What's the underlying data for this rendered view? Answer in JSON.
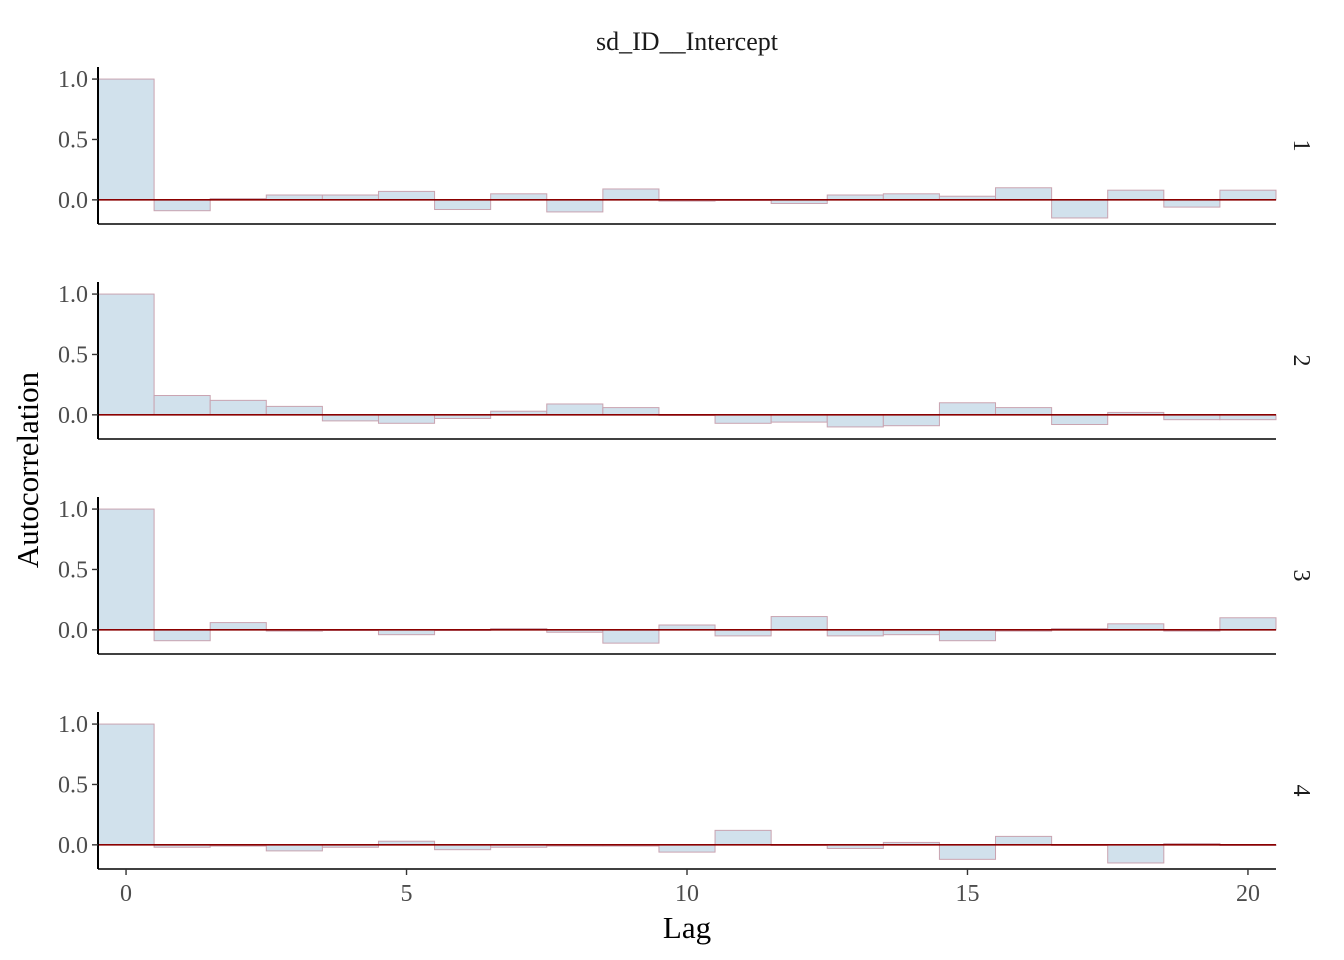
{
  "chart_data": {
    "type": "bar",
    "title": "sd_ID__Intercept",
    "xlabel": "Lag",
    "ylabel": "Autocorrelation",
    "x": [
      0,
      1,
      2,
      3,
      4,
      5,
      6,
      7,
      8,
      9,
      10,
      11,
      12,
      13,
      14,
      15,
      16,
      17,
      18,
      19,
      20
    ],
    "xlim": [
      -0.5,
      20.5
    ],
    "ylim": [
      -0.2,
      1.1
    ],
    "x_ticks": [
      0,
      5,
      10,
      15,
      20
    ],
    "x_tick_labels": [
      "0",
      "5",
      "10",
      "15",
      "20"
    ],
    "y_ticks": [
      0,
      0.5,
      1
    ],
    "y_tick_labels": [
      "0.0",
      "0.5",
      "1.0"
    ],
    "grid": false,
    "facets": [
      {
        "name": "1",
        "values": [
          1.0,
          -0.09,
          0.01,
          0.04,
          0.04,
          0.07,
          -0.08,
          0.05,
          -0.1,
          0.09,
          -0.01,
          0.0,
          -0.03,
          0.04,
          0.05,
          0.03,
          0.1,
          -0.15,
          0.08,
          -0.06,
          0.08
        ]
      },
      {
        "name": "2",
        "values": [
          1.0,
          0.16,
          0.12,
          0.07,
          -0.05,
          -0.07,
          -0.03,
          0.03,
          0.09,
          0.06,
          0.0,
          -0.07,
          -0.06,
          -0.1,
          -0.09,
          0.1,
          0.06,
          -0.08,
          0.02,
          -0.04,
          -0.04
        ]
      },
      {
        "name": "3",
        "values": [
          1.0,
          -0.09,
          0.06,
          -0.01,
          0.0,
          -0.04,
          0.0,
          0.01,
          -0.02,
          -0.11,
          0.04,
          -0.05,
          0.11,
          -0.05,
          -0.04,
          -0.09,
          -0.01,
          0.01,
          0.05,
          -0.01,
          0.1
        ]
      },
      {
        "name": "4",
        "values": [
          1.0,
          -0.02,
          -0.01,
          -0.05,
          -0.02,
          0.03,
          -0.04,
          -0.02,
          -0.01,
          -0.01,
          -0.06,
          0.12,
          0.0,
          -0.03,
          0.02,
          -0.12,
          0.07,
          0.0,
          -0.15,
          0.01,
          0.0
        ]
      }
    ],
    "colors": {
      "bar_fill": "#d1e1ec",
      "bar_stroke": "#c9a3b0",
      "zero_line": "#8b0000",
      "axis": "#000000"
    }
  }
}
